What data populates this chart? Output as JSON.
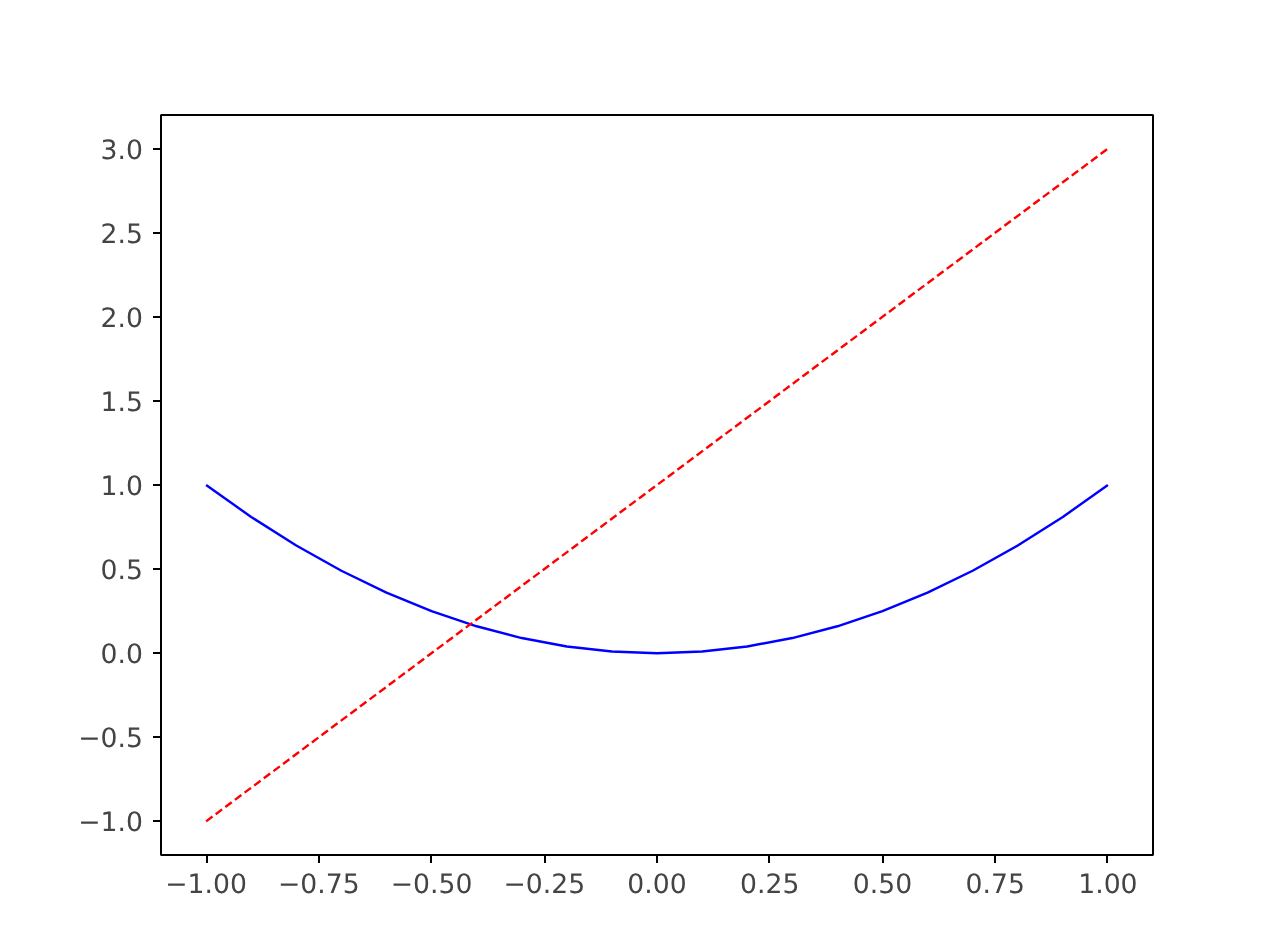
{
  "chart_data": {
    "type": "line",
    "xlim": [
      -1.1,
      1.1
    ],
    "ylim": [
      -1.2,
      3.2
    ],
    "xticks": [
      {
        "value": -1,
        "label": "−1.00"
      },
      {
        "value": -0.75,
        "label": "−0.75"
      },
      {
        "value": -0.5,
        "label": "−0.50"
      },
      {
        "value": -0.25,
        "label": "−0.25"
      },
      {
        "value": 0,
        "label": "0.00"
      },
      {
        "value": 0.25,
        "label": "0.25"
      },
      {
        "value": 0.5,
        "label": "0.50"
      },
      {
        "value": 0.75,
        "label": "0.75"
      },
      {
        "value": 1,
        "label": "1.00"
      }
    ],
    "yticks": [
      {
        "value": -1,
        "label": "−1.0"
      },
      {
        "value": -0.5,
        "label": "−0.5"
      },
      {
        "value": 0,
        "label": "0.0"
      },
      {
        "value": 0.5,
        "label": "0.5"
      },
      {
        "value": 1,
        "label": "1.0"
      },
      {
        "value": 1.5,
        "label": "1.5"
      },
      {
        "value": 2,
        "label": "2.0"
      },
      {
        "value": 2.5,
        "label": "2.5"
      },
      {
        "value": 3,
        "label": "3.0"
      }
    ],
    "grid": false,
    "series": [
      {
        "color": "#0000ff",
        "line_style": "solid",
        "x": [
          -1,
          -0.9,
          -0.8,
          -0.7,
          -0.6,
          -0.5,
          -0.4,
          -0.3,
          -0.2,
          -0.1,
          0,
          0.1,
          0.2,
          0.3,
          0.4,
          0.5,
          0.6,
          0.7,
          0.8,
          0.9,
          1
        ],
        "values": [
          1,
          0.81,
          0.64,
          0.49,
          0.36,
          0.25,
          0.16,
          0.09,
          0.04,
          0.01,
          0,
          0.01,
          0.04,
          0.09,
          0.16,
          0.25,
          0.36,
          0.49,
          0.64,
          0.81,
          1
        ]
      },
      {
        "color": "#ff0000",
        "line_style": "dashed",
        "x": [
          -1,
          1
        ],
        "values": [
          -1,
          3
        ]
      }
    ]
  }
}
